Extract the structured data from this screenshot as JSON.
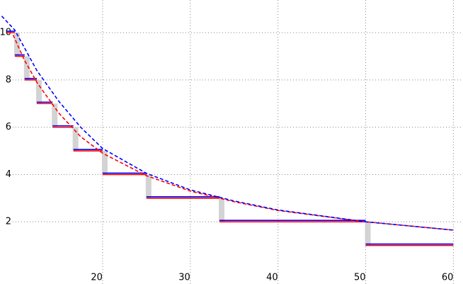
{
  "chart_data": {
    "type": "step",
    "xlim": [
      8.3,
      61.1
    ],
    "ylim": [
      -0.63,
      11.38
    ],
    "xticks": [
      20,
      30,
      40,
      50,
      60
    ],
    "yticks": [
      2,
      4,
      6,
      8,
      10
    ],
    "grid": true,
    "steps": {
      "edges": [
        9.09,
        10,
        11.11,
        12.5,
        14.29,
        16.67,
        20,
        25,
        33.33,
        50,
        60
      ],
      "values": [
        10,
        9,
        8,
        7,
        6,
        5,
        4,
        3,
        2,
        1
      ],
      "colors": [
        "#ff0000",
        "#0000ff"
      ],
      "gap_color": "#d3d3d3"
    },
    "series": [
      {
        "color": "#ff0000",
        "x": [
          9.8,
          11,
          12.5,
          15,
          17.5,
          20,
          25,
          30,
          35,
          40,
          50,
          60
        ],
        "values": [
          9.9,
          8.9,
          7.9,
          6.6,
          5.6,
          4.9,
          3.95,
          3.3,
          2.85,
          2.48,
          2.0,
          1.65
        ]
      },
      {
        "color": "#0000ff",
        "x": [
          8.5,
          10,
          12.5,
          15,
          17.5,
          20,
          25,
          30,
          35,
          40,
          50,
          60
        ],
        "values": [
          10.7,
          10.1,
          8.4,
          7.1,
          6.0,
          5.1,
          4.05,
          3.35,
          2.88,
          2.5,
          2.0,
          1.65
        ]
      }
    ]
  }
}
